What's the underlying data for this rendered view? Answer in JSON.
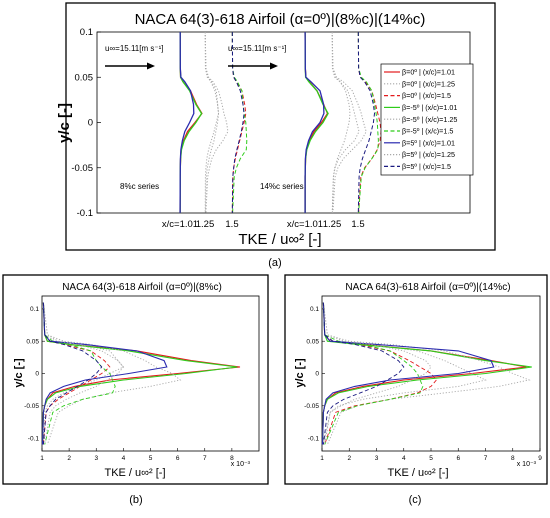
{
  "figure_labels": [
    "(a)",
    "(b)",
    "(c)"
  ],
  "colors": {
    "red": "#e31a1c",
    "gray": "#a8a8a8",
    "green": "#2ecc1a",
    "blue": "#2b2bb0",
    "navy": "#1a1a80"
  },
  "chart_data": [
    {
      "type": "line",
      "panel": "a",
      "title": "NACA 64(3)-618 Airfoil (α=0º)|(8%c)|(14%c)",
      "xlabel": "TKE / u∞² [-]",
      "ylabel": "y/c [-]",
      "ylim": [
        -0.1,
        0.1
      ],
      "yticks": [
        "0.1",
        "0.05",
        "0",
        "-0.05",
        "-0.1"
      ],
      "xtick_labels": [
        "x/c=1.01",
        "1.25",
        "1.5",
        "x/c=1.01",
        "1.25",
        "1.5"
      ],
      "annotations": [
        "u∞=15.11[m s⁻¹]",
        "u∞=15.11[m s⁻¹]",
        "8%c series",
        "14%c series"
      ],
      "legend": [
        "β=0º | (x/c)=1.01",
        "β=0º | (x/c)=1.25",
        "β=0º | (x/c)=1.5",
        "β=-5º | (x/c)=1.01",
        "β=-5º | (x/c)=1.25",
        "β=-5º | (x/c)=1.5",
        "β=5º | (x/c)=1.01",
        "β=5º | (x/c)=1.25",
        "β=5º | (x/c)=1.5"
      ],
      "legend_position": "right",
      "series_style": [
        {
          "color": "red",
          "dash": "solid"
        },
        {
          "color": "gray",
          "dash": "dot"
        },
        {
          "color": "red",
          "dash": "dash"
        },
        {
          "color": "green",
          "dash": "solid"
        },
        {
          "color": "gray",
          "dash": "dot"
        },
        {
          "color": "green",
          "dash": "dash"
        },
        {
          "color": "blue",
          "dash": "solid"
        },
        {
          "color": "gray",
          "dash": "dot"
        },
        {
          "color": "navy",
          "dash": "dash"
        }
      ]
    },
    {
      "type": "line",
      "panel": "b",
      "title": "NACA 64(3)-618 Airfoil (α=0º)|(8%c)",
      "xlabel": "TKE / u∞² [-]",
      "ylabel": "y/c [-]",
      "xlim": [
        1,
        9
      ],
      "ylim": [
        -0.12,
        0.12
      ],
      "xticks": [
        "1",
        "2",
        "3",
        "4",
        "5",
        "6",
        "7",
        "8"
      ],
      "yticks": [
        "0.1",
        "0.05",
        "0",
        "-0.05",
        "-0.1"
      ],
      "x_multiplier": "x 10⁻³",
      "y": [
        0.11,
        0.06,
        0.05,
        0.045,
        0.035,
        0.02,
        0.01,
        0,
        -0.01,
        -0.02,
        -0.03,
        -0.04,
        -0.05,
        -0.06,
        -0.11
      ],
      "series": [
        {
          "values": [
            1.05,
            1.1,
            1.2,
            2.0,
            4.5,
            6.5,
            8.3,
            6.0,
            3.5,
            2.2,
            1.4,
            1.2,
            1.1,
            1.05,
            1.02
          ]
        },
        {
          "values": [
            1.05,
            1.1,
            1.5,
            2.5,
            3.5,
            3.8,
            4.0,
            3.5,
            3.0,
            2.4,
            1.8,
            1.4,
            1.2,
            1.1,
            1.05
          ]
        },
        {
          "values": [
            1.05,
            1.1,
            1.3,
            1.8,
            2.8,
            3.3,
            3.5,
            3.2,
            2.8,
            2.4,
            2.0,
            1.6,
            1.3,
            1.15,
            1.05
          ]
        },
        {
          "values": [
            1.05,
            1.1,
            1.2,
            2.0,
            4.2,
            6.3,
            8.2,
            6.3,
            4.0,
            2.4,
            1.5,
            1.2,
            1.1,
            1.05,
            1.02
          ]
        },
        {
          "values": [
            1.05,
            1.2,
            1.8,
            2.8,
            4.0,
            4.8,
            5.2,
            5.8,
            6.1,
            5.0,
            3.5,
            2.5,
            2.0,
            1.6,
            1.2
          ]
        },
        {
          "values": [
            1.05,
            1.1,
            1.4,
            2.0,
            2.8,
            3.0,
            3.2,
            3.5,
            3.6,
            3.7,
            3.6,
            2.5,
            1.8,
            1.4,
            1.1
          ]
        },
        {
          "values": [
            1.05,
            1.1,
            1.3,
            2.6,
            4.5,
            5.5,
            5.6,
            4.2,
            2.6,
            1.8,
            1.3,
            1.15,
            1.1,
            1.05,
            1.02
          ]
        },
        {
          "values": [
            1.05,
            1.2,
            1.6,
            2.3,
            3.2,
            3.8,
            4.0,
            3.8,
            3.4,
            3.0,
            2.4,
            1.9,
            1.5,
            1.3,
            1.1
          ]
        },
        {
          "values": [
            1.05,
            1.1,
            1.3,
            1.8,
            2.5,
            3.0,
            3.2,
            3.0,
            2.7,
            2.3,
            1.9,
            1.5,
            1.3,
            1.15,
            1.05
          ]
        }
      ]
    },
    {
      "type": "line",
      "panel": "c",
      "title": "NACA 64(3)-618 Airfoil (α=0º)|(14%c)",
      "xlabel": "TKE / u∞² [-]",
      "ylabel": "y/c [-]",
      "xlim": [
        1,
        9
      ],
      "ylim": [
        -0.12,
        0.12
      ],
      "xticks": [
        "1",
        "2",
        "3",
        "4",
        "5",
        "6",
        "7",
        "8",
        "9"
      ],
      "yticks": [
        "0.1",
        "0.05",
        "0",
        "-0.05",
        "-0.1"
      ],
      "x_multiplier": "x 10⁻³",
      "y": [
        0.11,
        0.06,
        0.05,
        0.045,
        0.035,
        0.02,
        0.01,
        0,
        -0.01,
        -0.02,
        -0.03,
        -0.04,
        -0.05,
        -0.06,
        -0.11
      ],
      "series": [
        {
          "values": [
            1.05,
            1.1,
            1.3,
            2.5,
            5.0,
            7.2,
            8.5,
            6.5,
            4.0,
            2.5,
            1.5,
            1.2,
            1.1,
            1.05,
            1.02
          ]
        },
        {
          "values": [
            1.05,
            1.1,
            1.6,
            2.8,
            4.5,
            5.5,
            6.0,
            6.5,
            7.0,
            6.0,
            4.0,
            2.5,
            1.6,
            1.3,
            1.05
          ]
        },
        {
          "values": [
            1.05,
            1.1,
            1.4,
            2.3,
            3.5,
            4.2,
            4.6,
            5.0,
            5.2,
            5.0,
            4.5,
            3.5,
            2.2,
            1.5,
            1.1
          ]
        },
        {
          "values": [
            1.05,
            1.1,
            1.2,
            2.3,
            5.0,
            7.0,
            8.7,
            7.0,
            4.5,
            2.7,
            1.6,
            1.2,
            1.1,
            1.05,
            1.02
          ]
        },
        {
          "values": [
            1.05,
            1.2,
            2.0,
            3.5,
            5.5,
            6.8,
            7.5,
            8.0,
            8.6,
            7.5,
            5.5,
            3.5,
            2.3,
            1.7,
            1.2
          ]
        },
        {
          "values": [
            1.05,
            1.1,
            1.6,
            2.5,
            3.5,
            4.0,
            4.3,
            4.5,
            4.6,
            4.7,
            4.6,
            3.5,
            2.3,
            1.6,
            1.1
          ]
        },
        {
          "values": [
            1.05,
            1.1,
            1.3,
            3.0,
            6.0,
            7.2,
            7.3,
            6.0,
            3.5,
            2.2,
            1.4,
            1.15,
            1.1,
            1.05,
            1.02
          ]
        },
        {
          "values": [
            1.05,
            1.2,
            1.8,
            2.8,
            4.0,
            4.8,
            5.0,
            4.8,
            4.3,
            3.8,
            3.0,
            2.2,
            1.7,
            1.3,
            1.1
          ]
        },
        {
          "values": [
            1.05,
            1.1,
            1.4,
            2.2,
            3.2,
            3.8,
            4.0,
            3.8,
            3.4,
            3.0,
            2.4,
            1.8,
            1.4,
            1.2,
            1.05
          ]
        }
      ]
    }
  ]
}
